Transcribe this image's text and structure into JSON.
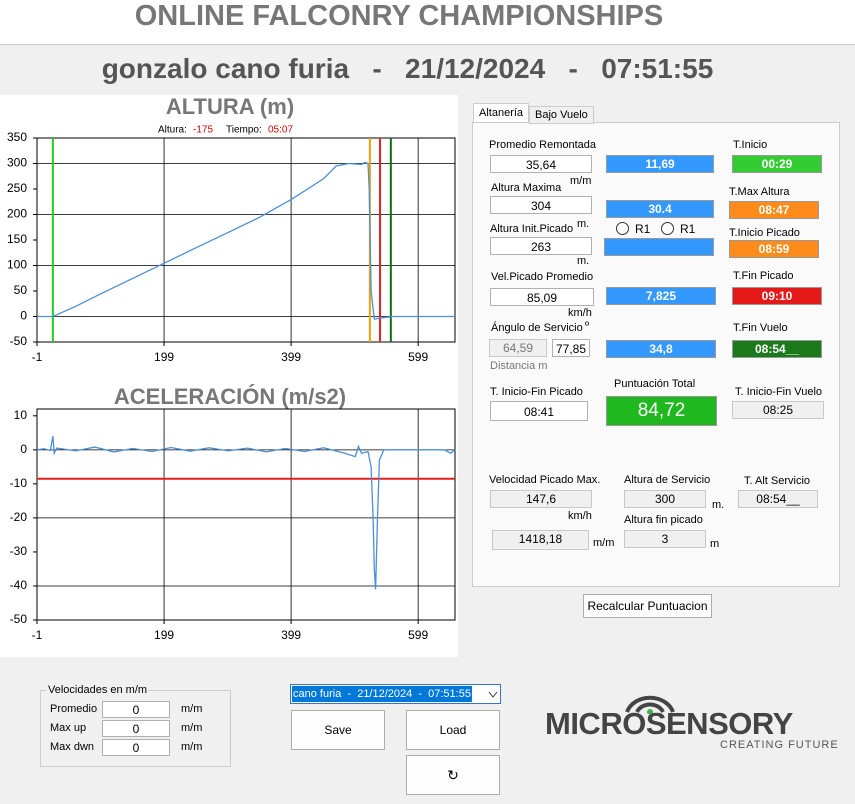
{
  "header": {
    "title": "ONLINE FALCONRY CHAMPIONSHIPS",
    "subtitle": "gonzalo cano furia   -   21/12/2024   -   07:51:55"
  },
  "chart_data": [
    {
      "type": "line",
      "title": "ALTURA (m)",
      "readout": {
        "altura_label": "Altura:",
        "altura": -175,
        "tiempo_label": "Tiempo:",
        "tiempo": "05:07"
      },
      "xlim": [
        -1,
        657
      ],
      "xticks": [
        -1,
        199,
        399,
        599
      ],
      "ylim": [
        -50,
        350
      ],
      "yticks": [
        -50,
        0,
        50,
        100,
        150,
        200,
        250,
        300,
        350
      ],
      "grid": true,
      "vlines": [
        {
          "value": 24,
          "color": "#22cc22"
        },
        {
          "value": 523,
          "color": "#f0a000"
        },
        {
          "value": 539,
          "color": "#e02020"
        },
        {
          "value": 556,
          "color": "#107010"
        }
      ],
      "series": [
        {
          "color": "#4a8fd8",
          "x": [
            -1,
            24,
            60,
            100,
            150,
            200,
            250,
            300,
            350,
            400,
            450,
            470,
            490,
            510,
            515,
            520,
            522,
            525,
            530,
            540,
            560,
            600,
            657
          ],
          "values": [
            0,
            0,
            20,
            45,
            75,
            105,
            135,
            165,
            195,
            230,
            270,
            295,
            300,
            298,
            302,
            300,
            250,
            50,
            -5,
            -3,
            0,
            0,
            0
          ]
        }
      ]
    },
    {
      "type": "line",
      "title": "ACELERACIÓN (m/s2)",
      "xlim": [
        -1,
        657
      ],
      "xticks": [
        -1,
        199,
        399,
        599
      ],
      "ylim": [
        -50,
        12
      ],
      "yticks": [
        -50,
        -40,
        -30,
        -20,
        -10,
        0,
        10
      ],
      "grid": true,
      "hlines": [
        {
          "value": -8.5,
          "color": "#e02020"
        }
      ],
      "series": [
        {
          "color": "#4a8fd8",
          "x": [
            -1,
            10,
            20,
            24,
            26,
            30,
            60,
            90,
            120,
            150,
            180,
            210,
            240,
            270,
            300,
            330,
            360,
            390,
            420,
            450,
            480,
            500,
            505,
            510,
            520,
            525,
            528,
            530,
            532,
            535,
            538,
            545,
            560,
            600,
            640,
            650,
            657
          ],
          "values": [
            0,
            0.3,
            -0.2,
            4,
            -1,
            0.5,
            -0.3,
            0.8,
            -0.6,
            0.4,
            -0.5,
            0.7,
            -0.4,
            0.6,
            -0.3,
            0.5,
            -0.6,
            0.4,
            -0.5,
            0.6,
            -0.8,
            -2,
            1,
            -1,
            -0.5,
            -5,
            -20,
            -35,
            -41,
            -20,
            -3,
            0,
            0,
            0,
            0,
            -1,
            0
          ]
        }
      ]
    }
  ],
  "panel": {
    "tabs": [
      "Altanería",
      "Bajo Vuelo"
    ],
    "promedio_remontada": {
      "label": "Promedio Remontada",
      "value": "35,64",
      "unit": "m/m",
      "rate": "11,69"
    },
    "t_inicio": {
      "label": "T.Inicio",
      "value": "00:29"
    },
    "altura_maxima": {
      "label": "Altura Maxima",
      "value": "304",
      "rate": "30.4"
    },
    "t_max_altura": {
      "label": "T.Max Altura",
      "value": "08:47"
    },
    "altura_init_picado": {
      "label": "Altura Init.Picado",
      "unit_top": "m.",
      "value": "263",
      "unit": "m."
    },
    "radios": [
      "R1",
      "R1"
    ],
    "t_inicio_picado": {
      "label": "T.Inicio Picado",
      "value": "08:59"
    },
    "vel_picado_promedio": {
      "label": "Vel.Picado Promedio",
      "value": "85,09",
      "unit": "km/h",
      "rate": "7,825"
    },
    "t_fin_picado": {
      "label": "T.Fin Picado",
      "value": "09:10"
    },
    "angulo_servicio": {
      "label": "Ángulo de Servicio",
      "unit": "º",
      "values": [
        "64,59",
        "77,85"
      ],
      "distancia": "Distancia m",
      "rate": "34,8"
    },
    "t_fin_vuelo": {
      "label": "T.Fin Vuelo",
      "value": "08:54__"
    },
    "t_inicio_fin_picado": {
      "label": "T. Inicio-Fin Picado",
      "value": "08:41"
    },
    "puntuacion_total": {
      "label": "Puntuación Total",
      "value": "84,72"
    },
    "t_inicio_fin_vuelo": {
      "label": "T. Inicio-Fin Vuelo",
      "value": "08:25"
    },
    "velocidad_picado_max": {
      "label": "Velocidad Picado Max.",
      "value": "147,6",
      "unit": "km/h",
      "value_mm": "1418,18",
      "unit_mm": "m/m"
    },
    "altura_servicio": {
      "label": "Altura de Servicio",
      "value": "300",
      "unit": "m."
    },
    "t_alt_servicio": {
      "label": "T. Alt Servicio",
      "value": "08:54__"
    },
    "altura_fin_picado": {
      "label": "Altura fin picado",
      "value": "3",
      "unit": "m"
    },
    "recalcular": "Recalcular Puntuacion"
  },
  "velocidades": {
    "title": "Velocidades en m/m",
    "rows": [
      {
        "label": "Promedio",
        "value": "0",
        "unit": "m/m"
      },
      {
        "label": "Max up",
        "value": "0",
        "unit": "m/m"
      },
      {
        "label": "Max dwn",
        "value": "0",
        "unit": "m/m"
      }
    ]
  },
  "session_select": "cano furia  -  21/12/2024  -  07:51:55",
  "buttons": {
    "save": "Save",
    "load": "Load",
    "refresh": "↻"
  },
  "logo": {
    "name": "MICROSENSORY",
    "tagline": "CREATING FUTURE"
  }
}
